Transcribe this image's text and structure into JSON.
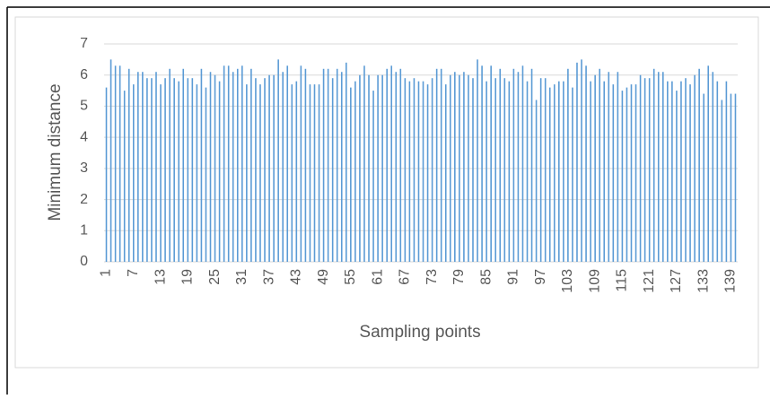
{
  "chart_data": {
    "type": "bar",
    "y_label": "Minimum distance",
    "x_label": "Sampling points",
    "categories": [
      "1",
      null,
      null,
      null,
      null,
      null,
      "7",
      null,
      null,
      null,
      null,
      null,
      "13",
      null,
      null,
      null,
      null,
      null,
      "19",
      null,
      null,
      null,
      null,
      null,
      "25",
      null,
      null,
      null,
      null,
      null,
      "31",
      null,
      null,
      null,
      null,
      null,
      "37",
      null,
      null,
      null,
      null,
      null,
      "43",
      null,
      null,
      null,
      null,
      null,
      "49",
      null,
      null,
      null,
      null,
      null,
      "55",
      null,
      null,
      null,
      null,
      null,
      "61",
      null,
      null,
      null,
      null,
      null,
      "67",
      null,
      null,
      null,
      null,
      null,
      "73",
      null,
      null,
      null,
      null,
      null,
      "79",
      null,
      null,
      null,
      null,
      null,
      "85",
      null,
      null,
      null,
      null,
      null,
      "91",
      null,
      null,
      null,
      null,
      null,
      "97",
      null,
      null,
      null,
      null,
      null,
      "103",
      null,
      null,
      null,
      null,
      null,
      "109",
      null,
      null,
      null,
      null,
      null,
      "115",
      null,
      null,
      null,
      null,
      null,
      "121",
      null,
      null,
      null,
      null,
      null,
      "127",
      null,
      null,
      null,
      null,
      null,
      "133",
      null,
      null,
      null,
      null,
      null,
      "139",
      null
    ],
    "values": [
      5.6,
      6.5,
      6.3,
      6.3,
      5.5,
      6.2,
      5.7,
      6.1,
      6.1,
      5.9,
      5.9,
      6.1,
      5.7,
      5.9,
      6.2,
      5.9,
      5.8,
      6.2,
      5.9,
      5.9,
      5.7,
      6.2,
      5.6,
      6.1,
      6.0,
      5.8,
      6.3,
      6.3,
      6.1,
      6.2,
      6.3,
      5.7,
      6.2,
      5.9,
      5.7,
      5.9,
      6.0,
      6.0,
      6.5,
      6.1,
      6.3,
      5.7,
      5.8,
      6.3,
      6.2,
      5.7,
      5.7,
      5.7,
      6.2,
      6.2,
      5.9,
      6.2,
      6.1,
      6.4,
      5.6,
      5.8,
      6.0,
      6.3,
      6.0,
      5.5,
      6.0,
      6.0,
      6.2,
      6.3,
      6.1,
      6.2,
      5.9,
      5.8,
      5.9,
      5.8,
      5.8,
      5.7,
      5.9,
      6.2,
      6.2,
      5.7,
      6.0,
      6.1,
      6.0,
      6.1,
      6.0,
      5.9,
      6.5,
      6.3,
      5.8,
      6.3,
      5.9,
      6.2,
      5.9,
      5.8,
      6.2,
      6.1,
      6.3,
      5.8,
      6.2,
      5.2,
      5.9,
      5.9,
      5.6,
      5.7,
      5.8,
      5.8,
      6.2,
      5.6,
      6.4,
      6.5,
      6.3,
      5.8,
      6.0,
      6.2,
      5.8,
      6.1,
      5.7,
      6.1,
      5.5,
      5.6,
      5.7,
      5.7,
      6.0,
      5.9,
      5.9,
      6.2,
      6.1,
      6.1,
      5.8,
      5.8,
      5.5,
      5.8,
      5.9,
      5.7,
      6.0,
      6.2,
      5.4,
      6.3,
      6.1,
      5.8,
      5.2,
      5.8,
      5.4,
      5.4
    ],
    "color": "#5b9bd5",
    "ylim": [
      0,
      7
    ],
    "yticks": [
      0,
      1,
      2,
      3,
      4,
      5,
      6,
      7
    ],
    "grid": true
  }
}
